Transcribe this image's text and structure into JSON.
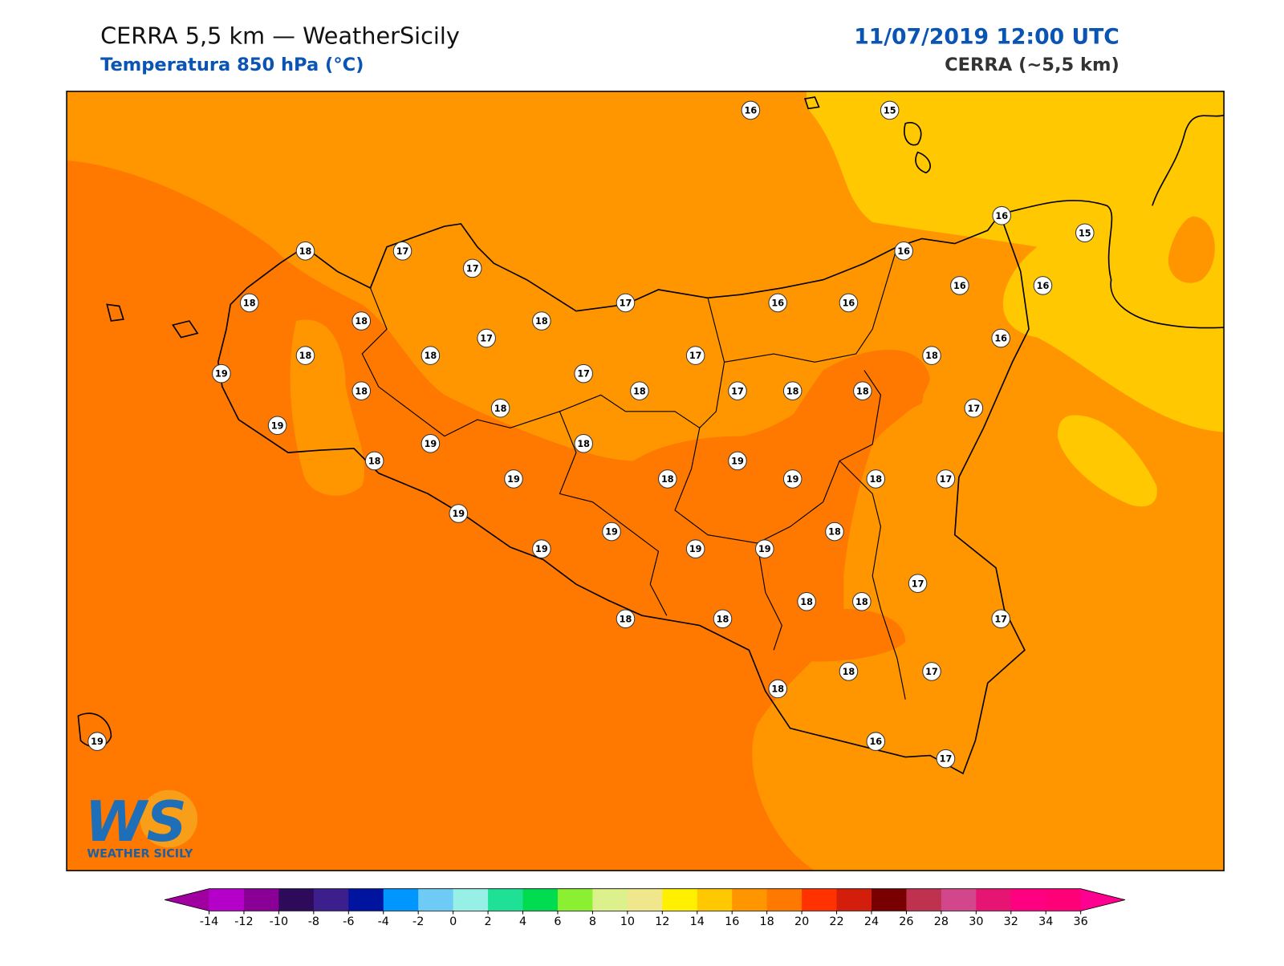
{
  "header": {
    "title": "CERRA 5,5 km — WeatherSicily",
    "subtitle": "Temperatura 850 hPa (°C)",
    "datetime": "11/07/2019 12:00 UTC",
    "model": "CERRA (~5,5 km)"
  },
  "logo": {
    "mark": "WS",
    "name": "WEATHER SICILY"
  },
  "stations": {
    "values": [
      16,
      15,
      16,
      15,
      18,
      17,
      17,
      16,
      18,
      18,
      18,
      17,
      16,
      16,
      16,
      16,
      18,
      18,
      17,
      19,
      17,
      17,
      16,
      18,
      18,
      17,
      18,
      18,
      18,
      19,
      18,
      17,
      19,
      18,
      18,
      19,
      18,
      19,
      19,
      18,
      17,
      19,
      19,
      18,
      19,
      19,
      19,
      18,
      18,
      17,
      17,
      18,
      18,
      18,
      18,
      17,
      16,
      17,
      19
    ]
  },
  "colorbar": {
    "ticks": [
      -14,
      -12,
      -10,
      -8,
      -6,
      -4,
      -2,
      0,
      2,
      4,
      6,
      8,
      10,
      12,
      14,
      16,
      18,
      20,
      22,
      24,
      26,
      28,
      30,
      32,
      34,
      36
    ],
    "colors": [
      "#b400c8",
      "#8a0096",
      "#2d0a5a",
      "#3c1e8c",
      "#0014a0",
      "#0096ff",
      "#6ecbf5",
      "#96f0e6",
      "#1ee196",
      "#00dc50",
      "#8cf032",
      "#dcf08c",
      "#f0e68c",
      "#fff000",
      "#ffc800",
      "#ff9600",
      "#ff7800",
      "#ff3200",
      "#d21e0a",
      "#780000",
      "#be3250",
      "#d2468c",
      "#e61473",
      "#ff0080",
      "#ff0078"
    ],
    "under_color": "#a000a0",
    "over_color": "#ff0090"
  }
}
